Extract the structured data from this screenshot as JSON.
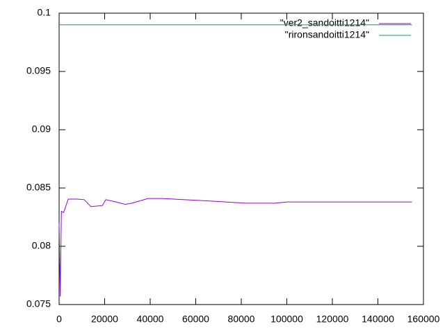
{
  "chart_data": {
    "type": "line",
    "series": [
      {
        "name": "\"ver2_sandoitti1214\"",
        "color": "#9400d3",
        "x": [
          0,
          500,
          1000,
          2000,
          4000,
          8000,
          11000,
          14000,
          19000,
          20500,
          25000,
          29000,
          32000,
          39000,
          45000,
          65000,
          82000,
          95000,
          100000,
          125000,
          140000,
          155000
        ],
        "values": [
          0.082,
          0.0757,
          0.083,
          0.0829,
          0.08405,
          0.08405,
          0.084,
          0.0834,
          0.0835,
          0.084,
          0.0838,
          0.0836,
          0.0837,
          0.0841,
          0.0841,
          0.0839,
          0.0837,
          0.0837,
          0.0838,
          0.0838,
          0.0838,
          0.0838
        ]
      },
      {
        "name": "\"rironsandoitti1214\"",
        "color": "#009e73",
        "x": [
          0,
          155000
        ],
        "values": [
          0.099,
          0.099
        ]
      }
    ],
    "xlim": [
      0,
      160000
    ],
    "xticks": [
      0,
      20000,
      40000,
      60000,
      80000,
      100000,
      120000,
      140000,
      160000
    ],
    "ylim": [
      0.075,
      0.1
    ],
    "yticks": [
      0.075,
      0.08,
      0.085,
      0.09,
      0.095,
      0.1
    ],
    "grid": false,
    "legend": "top-right"
  }
}
